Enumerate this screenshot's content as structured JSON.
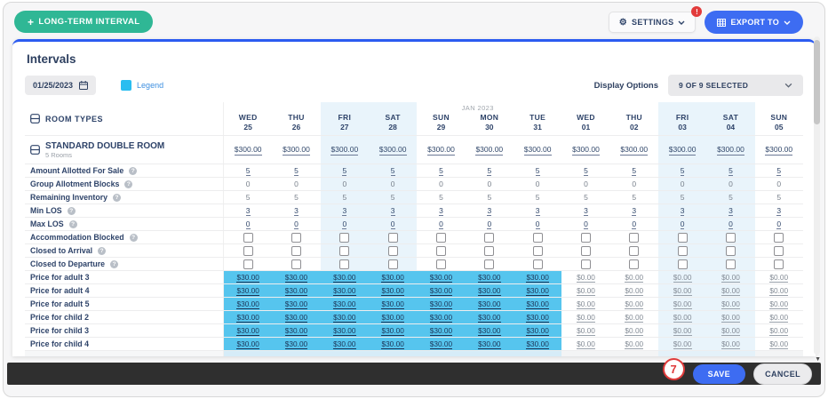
{
  "toolbar": {
    "long_term_interval_label": "LONG-TERM INTERVAL",
    "settings_label": "SETTINGS",
    "settings_badge": "!",
    "export_label": "EXPORT TO"
  },
  "panel": {
    "title": "Intervals",
    "date_value": "01/25/2023",
    "legend_label": "Legend",
    "legend_color": "#29bdf0",
    "display_options_label": "Display Options",
    "display_options_value": "9 OF 9 SELECTED"
  },
  "table": {
    "room_types_header": "ROOM TYPES",
    "columns": [
      {
        "day": "WED",
        "date": "25",
        "weekend": false
      },
      {
        "day": "THU",
        "date": "26",
        "weekend": false
      },
      {
        "day": "FRI",
        "date": "27",
        "weekend": true
      },
      {
        "day": "SAT",
        "date": "28",
        "weekend": true
      },
      {
        "day": "SUN",
        "date": "29",
        "weekend": false
      },
      {
        "day": "MON",
        "date": "30",
        "weekend": false,
        "month": "JAN 2023"
      },
      {
        "day": "TUE",
        "date": "31",
        "weekend": false
      },
      {
        "day": "WED",
        "date": "01",
        "weekend": false
      },
      {
        "day": "THU",
        "date": "02",
        "weekend": false
      },
      {
        "day": "FRI",
        "date": "03",
        "weekend": true
      },
      {
        "day": "SAT",
        "date": "04",
        "weekend": true
      },
      {
        "day": "SUN",
        "date": "05",
        "weekend": false
      }
    ],
    "room": {
      "name": "STANDARD DOUBLE ROOM",
      "subtitle": "5 Rooms",
      "rates": [
        "$300.00",
        "$300.00",
        "$300.00",
        "$300.00",
        "$300.00",
        "$300.00",
        "$300.00",
        "$300.00",
        "$300.00",
        "$300.00",
        "$300.00",
        "$300.00"
      ]
    },
    "attribute_rows": [
      {
        "label": "Amount Allotted For Sale",
        "help": true,
        "type": "link",
        "values": [
          "5",
          "5",
          "5",
          "5",
          "5",
          "5",
          "5",
          "5",
          "5",
          "5",
          "5",
          "5"
        ]
      },
      {
        "label": "Group Allotment Blocks",
        "help": true,
        "type": "text",
        "values": [
          "0",
          "0",
          "0",
          "0",
          "0",
          "0",
          "0",
          "0",
          "0",
          "0",
          "0",
          "0"
        ]
      },
      {
        "label": "Remaining Inventory",
        "help": true,
        "type": "text",
        "values": [
          "5",
          "5",
          "5",
          "5",
          "5",
          "5",
          "5",
          "5",
          "5",
          "5",
          "5",
          "5"
        ]
      },
      {
        "label": "Min LOS",
        "help": true,
        "type": "link",
        "values": [
          "3",
          "3",
          "3",
          "3",
          "3",
          "3",
          "3",
          "3",
          "3",
          "3",
          "3",
          "3"
        ]
      },
      {
        "label": "Max LOS",
        "help": true,
        "type": "link",
        "values": [
          "0",
          "0",
          "0",
          "0",
          "0",
          "0",
          "0",
          "0",
          "0",
          "0",
          "0",
          "0"
        ]
      },
      {
        "label": "Accommodation Blocked",
        "help": true,
        "type": "checkbox",
        "values": [
          false,
          false,
          false,
          false,
          false,
          false,
          false,
          false,
          false,
          false,
          false,
          false
        ]
      },
      {
        "label": "Closed to Arrival",
        "help": true,
        "type": "checkbox",
        "values": [
          false,
          false,
          false,
          false,
          false,
          false,
          false,
          false,
          false,
          false,
          false,
          false
        ]
      },
      {
        "label": "Closed to Departure",
        "help": true,
        "type": "checkbox",
        "values": [
          false,
          false,
          false,
          false,
          false,
          false,
          false,
          false,
          false,
          false,
          false,
          false
        ]
      }
    ],
    "price_rows": [
      {
        "label": "Price for adult 3",
        "highlight_count": 7,
        "values": [
          "$30.00",
          "$30.00",
          "$30.00",
          "$30.00",
          "$30.00",
          "$30.00",
          "$30.00",
          "$0.00",
          "$0.00",
          "$0.00",
          "$0.00",
          "$0.00"
        ]
      },
      {
        "label": "Price for adult 4",
        "highlight_count": 7,
        "values": [
          "$30.00",
          "$30.00",
          "$30.00",
          "$30.00",
          "$30.00",
          "$30.00",
          "$30.00",
          "$0.00",
          "$0.00",
          "$0.00",
          "$0.00",
          "$0.00"
        ]
      },
      {
        "label": "Price for adult 5",
        "highlight_count": 7,
        "values": [
          "$30.00",
          "$30.00",
          "$30.00",
          "$30.00",
          "$30.00",
          "$30.00",
          "$30.00",
          "$0.00",
          "$0.00",
          "$0.00",
          "$0.00",
          "$0.00"
        ]
      },
      {
        "label": "Price for child 2",
        "highlight_count": 7,
        "values": [
          "$30.00",
          "$30.00",
          "$30.00",
          "$30.00",
          "$30.00",
          "$30.00",
          "$30.00",
          "$0.00",
          "$0.00",
          "$0.00",
          "$0.00",
          "$0.00"
        ]
      },
      {
        "label": "Price for child 3",
        "highlight_count": 7,
        "values": [
          "$30.00",
          "$30.00",
          "$30.00",
          "$30.00",
          "$30.00",
          "$30.00",
          "$30.00",
          "$0.00",
          "$0.00",
          "$0.00",
          "$0.00",
          "$0.00"
        ]
      },
      {
        "label": "Price for child 4",
        "highlight_count": 7,
        "values": [
          "$30.00",
          "$30.00",
          "$30.00",
          "$30.00",
          "$30.00",
          "$30.00",
          "$30.00",
          "$0.00",
          "$0.00",
          "$0.00",
          "$0.00",
          "$0.00"
        ]
      }
    ]
  },
  "footer": {
    "save_label": "SAVE",
    "cancel_label": "CANCEL",
    "annotation": "7"
  },
  "colors": {
    "accent_blue": "#3d6cf2",
    "accent_teal": "#2fb795",
    "cyan_highlight": "#56c5ee",
    "weekend_highlight": "#e9f4fb",
    "top_border": "#2b5bf0",
    "alert_red": "#e23b3b",
    "navy_text": "#2e4369"
  }
}
